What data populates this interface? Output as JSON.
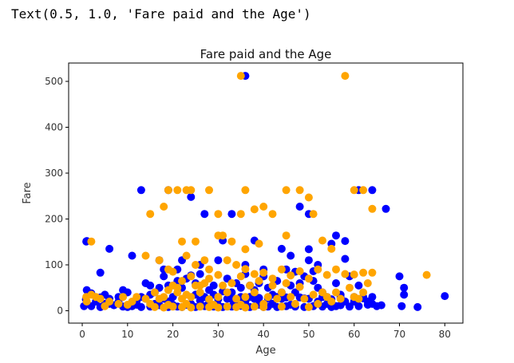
{
  "output": {
    "text": "Text(0.5, 1.0, 'Fare paid and the Age')"
  },
  "colors": {
    "series_a": "#0000ff",
    "series_b": "#ffa500",
    "axis": "#000000",
    "text": "#333333"
  },
  "chart_data": {
    "type": "scatter",
    "title": "Fare paid and the Age",
    "xlabel": "Age",
    "ylabel": "Fare",
    "xlim": [
      -3,
      84
    ],
    "ylim": [
      -27,
      540
    ],
    "xticks": [
      0,
      10,
      20,
      30,
      40,
      50,
      60,
      70,
      80
    ],
    "yticks": [
      0,
      100,
      200,
      300,
      400,
      500
    ],
    "grid": false,
    "legend": "none",
    "series": [
      {
        "color": "#0000ff",
        "points": [
          [
            36,
            512
          ],
          [
            13,
            263
          ],
          [
            19,
            263
          ],
          [
            24,
            248
          ],
          [
            27,
            211
          ],
          [
            33,
            211
          ],
          [
            48,
            227
          ],
          [
            61,
            263
          ],
          [
            64,
            263
          ],
          [
            67,
            222
          ],
          [
            50,
            211
          ],
          [
            56,
            164
          ],
          [
            58,
            152
          ],
          [
            1,
            152
          ],
          [
            0.9,
            151
          ],
          [
            6,
            135
          ],
          [
            11,
            120
          ],
          [
            17,
            110
          ],
          [
            21,
            90
          ],
          [
            24,
            77
          ],
          [
            31,
            153
          ],
          [
            38,
            153
          ],
          [
            44,
            135
          ],
          [
            50,
            134
          ],
          [
            51,
            86
          ],
          [
            55,
            146
          ],
          [
            58,
            113
          ],
          [
            4,
            83
          ],
          [
            8,
            30
          ],
          [
            10,
            40
          ],
          [
            12,
            20
          ],
          [
            14,
            60
          ],
          [
            16,
            40
          ],
          [
            18,
            75
          ],
          [
            19,
            55
          ],
          [
            20,
            30
          ],
          [
            22,
            50
          ],
          [
            23,
            70
          ],
          [
            25,
            60
          ],
          [
            26,
            80
          ],
          [
            28,
            45
          ],
          [
            29,
            55
          ],
          [
            30,
            25
          ],
          [
            32,
            70
          ],
          [
            33,
            40
          ],
          [
            34,
            60
          ],
          [
            35,
            50
          ],
          [
            36,
            80
          ],
          [
            37,
            30
          ],
          [
            38,
            45
          ],
          [
            39,
            60
          ],
          [
            40,
            75
          ],
          [
            41,
            50
          ],
          [
            42,
            35
          ],
          [
            43,
            65
          ],
          [
            44,
            40
          ],
          [
            45,
            90
          ],
          [
            46,
            55
          ],
          [
            47,
            85
          ],
          [
            48,
            60
          ],
          [
            49,
            75
          ],
          [
            50,
            110
          ],
          [
            51,
            65
          ],
          [
            52,
            50
          ],
          [
            53,
            40
          ],
          [
            54,
            30
          ],
          [
            55,
            25
          ],
          [
            56,
            60
          ],
          [
            57,
            35
          ],
          [
            58,
            20
          ],
          [
            59,
            75
          ],
          [
            60,
            30
          ],
          [
            61,
            55
          ],
          [
            62,
            30
          ],
          [
            63,
            20
          ],
          [
            64,
            15
          ],
          [
            65,
            10
          ],
          [
            66,
            12
          ],
          [
            70,
            75
          ],
          [
            71,
            50
          ],
          [
            71,
            35
          ],
          [
            70.5,
            10
          ],
          [
            74,
            8
          ],
          [
            80,
            32
          ],
          [
            0.4,
            10
          ],
          [
            0.8,
            25
          ],
          [
            1,
            45
          ],
          [
            2,
            38
          ],
          [
            3,
            20
          ],
          [
            4,
            29
          ],
          [
            5,
            15
          ],
          [
            6,
            26
          ],
          [
            7,
            12
          ],
          [
            9,
            9
          ],
          [
            11,
            10
          ],
          [
            13,
            8
          ],
          [
            15,
            9
          ],
          [
            17,
            12
          ],
          [
            19,
            8
          ],
          [
            21,
            9
          ],
          [
            23,
            13
          ],
          [
            25,
            8
          ],
          [
            27,
            10
          ],
          [
            29,
            9
          ],
          [
            31,
            8
          ],
          [
            33,
            9
          ],
          [
            35,
            11
          ],
          [
            37,
            8
          ],
          [
            39,
            13
          ],
          [
            41,
            9
          ],
          [
            43,
            8
          ],
          [
            45,
            10
          ],
          [
            47,
            9
          ],
          [
            49,
            8
          ],
          [
            51,
            10
          ],
          [
            53,
            9
          ],
          [
            55,
            8
          ],
          [
            57,
            12
          ],
          [
            59,
            9
          ],
          [
            61,
            10
          ],
          [
            63,
            13
          ],
          [
            24,
            15
          ],
          [
            26,
            22
          ],
          [
            28,
            18
          ],
          [
            30,
            12
          ],
          [
            32,
            26
          ],
          [
            34,
            15
          ],
          [
            36,
            20
          ],
          [
            38,
            26
          ],
          [
            40,
            8
          ],
          [
            42,
            15
          ],
          [
            44,
            26
          ],
          [
            46,
            13
          ],
          [
            48,
            29
          ],
          [
            50,
            26
          ],
          [
            52,
            20
          ],
          [
            54,
            15
          ],
          [
            56,
            10
          ],
          [
            18,
            26
          ],
          [
            20,
            13
          ],
          [
            22,
            8
          ],
          [
            16,
            15
          ],
          [
            14,
            26
          ],
          [
            12,
            13
          ],
          [
            10,
            8
          ],
          [
            8,
            20
          ],
          [
            6,
            15
          ],
          [
            4,
            8
          ],
          [
            2,
            10
          ],
          [
            5,
            35
          ],
          [
            9,
            45
          ],
          [
            15,
            35
          ],
          [
            17,
            50
          ],
          [
            21,
            65
          ],
          [
            27,
            30
          ],
          [
            29,
            35
          ],
          [
            31,
            42
          ],
          [
            35,
            30
          ],
          [
            37,
            55
          ],
          [
            39,
            28
          ],
          [
            41,
            27
          ],
          [
            43,
            30
          ],
          [
            45,
            29
          ],
          [
            47,
            40
          ],
          [
            49,
            27
          ],
          [
            53,
            30
          ],
          [
            57,
            29
          ],
          [
            62,
            27
          ],
          [
            64,
            30
          ],
          [
            60,
            20
          ],
          [
            36,
            100
          ],
          [
            40,
            90
          ],
          [
            22,
            110
          ],
          [
            18,
            90
          ],
          [
            26,
            100
          ],
          [
            30,
            110
          ],
          [
            46,
            120
          ],
          [
            52,
            100
          ],
          [
            13,
            30
          ],
          [
            15,
            55
          ],
          [
            19,
            20
          ],
          [
            25,
            35
          ],
          [
            33,
            25
          ]
        ]
      },
      {
        "color": "#ffa500",
        "points": [
          [
            35,
            512
          ],
          [
            58,
            512
          ],
          [
            19,
            263
          ],
          [
            21,
            263
          ],
          [
            23,
            263
          ],
          [
            24,
            263
          ],
          [
            28,
            263
          ],
          [
            36,
            263
          ],
          [
            45,
            263
          ],
          [
            48,
            263
          ],
          [
            50,
            247
          ],
          [
            60,
            263
          ],
          [
            62,
            263
          ],
          [
            15,
            211
          ],
          [
            18,
            227
          ],
          [
            30,
            211
          ],
          [
            35,
            211
          ],
          [
            40,
            227
          ],
          [
            42,
            211
          ],
          [
            38,
            221
          ],
          [
            51,
            211
          ],
          [
            64,
            222
          ],
          [
            2,
            151
          ],
          [
            22,
            151
          ],
          [
            25,
            151
          ],
          [
            30,
            164
          ],
          [
            31,
            164
          ],
          [
            33,
            151
          ],
          [
            36,
            134
          ],
          [
            39,
            146
          ],
          [
            45,
            164
          ],
          [
            53,
            153
          ],
          [
            55,
            135
          ],
          [
            14,
            120
          ],
          [
            17,
            110
          ],
          [
            19,
            90
          ],
          [
            20,
            85
          ],
          [
            23,
            120
          ],
          [
            25,
            100
          ],
          [
            27,
            110
          ],
          [
            28,
            90
          ],
          [
            30,
            78
          ],
          [
            32,
            110
          ],
          [
            34,
            100
          ],
          [
            36,
            91
          ],
          [
            38,
            80
          ],
          [
            40,
            83
          ],
          [
            42,
            70
          ],
          [
            44,
            90
          ],
          [
            46,
            77
          ],
          [
            48,
            86
          ],
          [
            52,
            90
          ],
          [
            54,
            78
          ],
          [
            56,
            90
          ],
          [
            60,
            79
          ],
          [
            62,
            83
          ],
          [
            64,
            83
          ],
          [
            76,
            78
          ],
          [
            0.9,
            30
          ],
          [
            1,
            20
          ],
          [
            2,
            35
          ],
          [
            3,
            30
          ],
          [
            4,
            26
          ],
          [
            5,
            10
          ],
          [
            6,
            20
          ],
          [
            8,
            15
          ],
          [
            9,
            30
          ],
          [
            10,
            13
          ],
          [
            11,
            20
          ],
          [
            12,
            30
          ],
          [
            14,
            26
          ],
          [
            15,
            15
          ],
          [
            16,
            40
          ],
          [
            17,
            26
          ],
          [
            18,
            30
          ],
          [
            19,
            13
          ],
          [
            20,
            55
          ],
          [
            21,
            40
          ],
          [
            22,
            26
          ],
          [
            23,
            15
          ],
          [
            24,
            30
          ],
          [
            25,
            55
          ],
          [
            26,
            40
          ],
          [
            27,
            60
          ],
          [
            28,
            25
          ],
          [
            29,
            13
          ],
          [
            30,
            30
          ],
          [
            31,
            55
          ],
          [
            32,
            40
          ],
          [
            33,
            60
          ],
          [
            34,
            26
          ],
          [
            35,
            13
          ],
          [
            36,
            30
          ],
          [
            37,
            55
          ],
          [
            38,
            40
          ],
          [
            39,
            65
          ],
          [
            40,
            15
          ],
          [
            41,
            30
          ],
          [
            42,
            55
          ],
          [
            43,
            26
          ],
          [
            44,
            40
          ],
          [
            45,
            60
          ],
          [
            46,
            30
          ],
          [
            47,
            15
          ],
          [
            48,
            52
          ],
          [
            49,
            26
          ],
          [
            50,
            70
          ],
          [
            51,
            35
          ],
          [
            52,
            15
          ],
          [
            53,
            40
          ],
          [
            54,
            30
          ],
          [
            55,
            20
          ],
          [
            56,
            40
          ],
          [
            57,
            26
          ],
          [
            58,
            80
          ],
          [
            59,
            50
          ],
          [
            60,
            30
          ],
          [
            61,
            26
          ],
          [
            62,
            40
          ],
          [
            63,
            60
          ],
          [
            16,
            8
          ],
          [
            18,
            7
          ],
          [
            20,
            9
          ],
          [
            22,
            8
          ],
          [
            24,
            7
          ],
          [
            26,
            9
          ],
          [
            28,
            8
          ],
          [
            30,
            7
          ],
          [
            32,
            9
          ],
          [
            34,
            8
          ],
          [
            36,
            7
          ],
          [
            38,
            9
          ],
          [
            40,
            8
          ],
          [
            44,
            9
          ],
          [
            50,
            8
          ],
          [
            22,
            65
          ],
          [
            24,
            75
          ],
          [
            26,
            55
          ],
          [
            28,
            70
          ],
          [
            19,
            45
          ],
          [
            21,
            50
          ],
          [
            23,
            35
          ],
          [
            35,
            75
          ]
        ]
      }
    ]
  }
}
